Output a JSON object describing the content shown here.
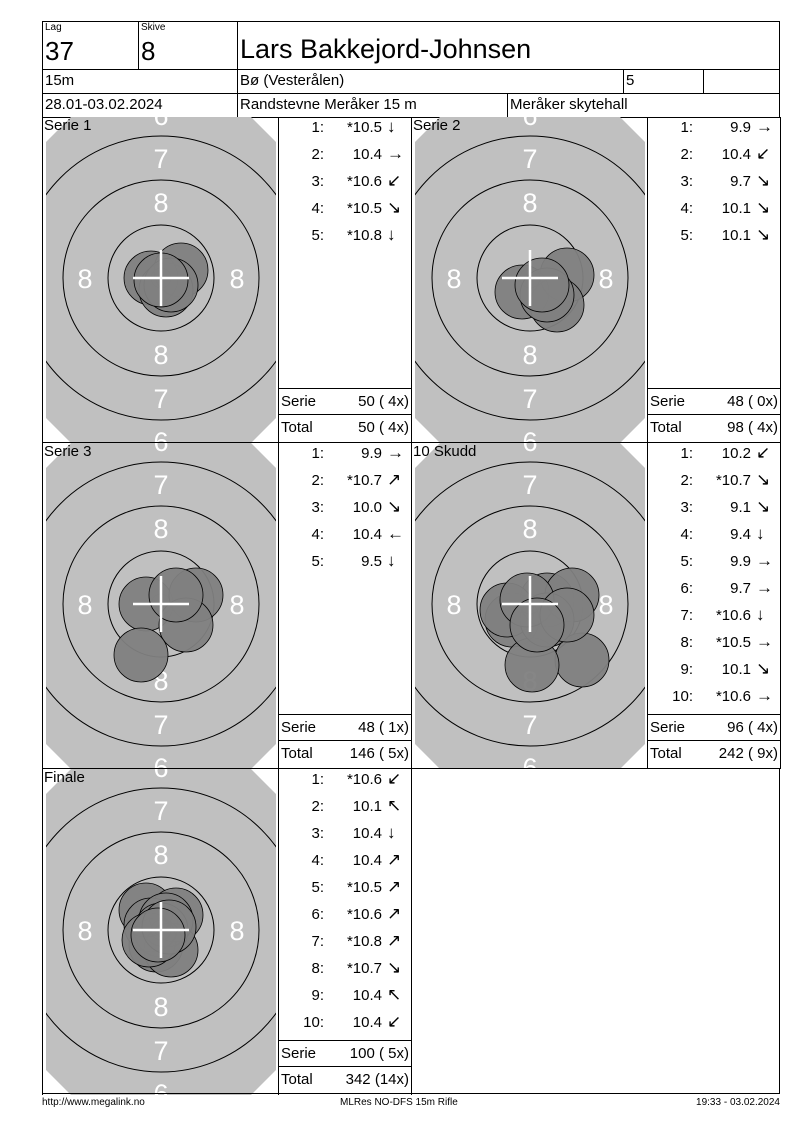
{
  "header": {
    "lag_label": "Lag",
    "lag": "37",
    "skive_label": "Skive",
    "skive": "8",
    "shooter": "Lars Bakkejord-Johnsen",
    "distance": "15m",
    "club": "Bø (Vesterålen)",
    "class": "5",
    "extra": "",
    "dates": "28.01-03.02.2024",
    "competition": "Randstevne Meråker 15 m",
    "venue": "Meråker skytehall"
  },
  "colors": {
    "target": "#c0c0c0",
    "shot": "#808080",
    "ring_text": "#ffffff"
  },
  "ring_labels": [
    "6",
    "7",
    "8",
    "8",
    "8",
    "8",
    "7",
    "6"
  ],
  "panels": [
    {
      "title": "Serie 1",
      "shots": [
        {
          "n": "1:",
          "v": "*10.5",
          "dir": "↓"
        },
        {
          "n": "2:",
          "v": "10.4",
          "dir": "→"
        },
        {
          "n": "3:",
          "v": "*10.6",
          "dir": "↙"
        },
        {
          "n": "4:",
          "v": "*10.5",
          "dir": "↘"
        },
        {
          "n": "5:",
          "v": "*10.8",
          "dir": "↓"
        }
      ],
      "serie_label": "Serie",
      "serie": "50 ( 4x)",
      "total_label": "Total",
      "total": "50 ( 4x)"
    },
    {
      "title": "Serie 2",
      "shots": [
        {
          "n": "1:",
          "v": "9.9",
          "dir": "→"
        },
        {
          "n": "2:",
          "v": "10.4",
          "dir": "↙"
        },
        {
          "n": "3:",
          "v": "9.7",
          "dir": "↘"
        },
        {
          "n": "4:",
          "v": "10.1",
          "dir": "↘"
        },
        {
          "n": "5:",
          "v": "10.1",
          "dir": "↘"
        }
      ],
      "serie_label": "Serie",
      "serie": "48 ( 0x)",
      "total_label": "Total",
      "total": "98 ( 4x)"
    },
    {
      "title": "Serie 3",
      "shots": [
        {
          "n": "1:",
          "v": "9.9",
          "dir": "→"
        },
        {
          "n": "2:",
          "v": "*10.7",
          "dir": "↗"
        },
        {
          "n": "3:",
          "v": "10.0",
          "dir": "↘"
        },
        {
          "n": "4:",
          "v": "10.4",
          "dir": "←"
        },
        {
          "n": "5:",
          "v": "9.5",
          "dir": "↓"
        }
      ],
      "serie_label": "Serie",
      "serie": "48 ( 1x)",
      "total_label": "Total",
      "total": "146 ( 5x)"
    },
    {
      "title": "10 Skudd",
      "shots": [
        {
          "n": "1:",
          "v": "10.2",
          "dir": "↙"
        },
        {
          "n": "2:",
          "v": "*10.7",
          "dir": "↘"
        },
        {
          "n": "3:",
          "v": "9.1",
          "dir": "↘"
        },
        {
          "n": "4:",
          "v": "9.4",
          "dir": "↓"
        },
        {
          "n": "5:",
          "v": "9.9",
          "dir": "→"
        },
        {
          "n": "6:",
          "v": "9.7",
          "dir": "→"
        },
        {
          "n": "7:",
          "v": "*10.6",
          "dir": "↓"
        },
        {
          "n": "8:",
          "v": "*10.5",
          "dir": "→"
        },
        {
          "n": "9:",
          "v": "10.1",
          "dir": "↘"
        },
        {
          "n": "10:",
          "v": "*10.6",
          "dir": "→"
        }
      ],
      "serie_label": "Serie",
      "serie": "96 ( 4x)",
      "total_label": "Total",
      "total": "242 ( 9x)"
    },
    {
      "title": "Finale",
      "shots": [
        {
          "n": "1:",
          "v": "*10.6",
          "dir": "↙"
        },
        {
          "n": "2:",
          "v": "10.1",
          "dir": "↖"
        },
        {
          "n": "3:",
          "v": "10.4",
          "dir": "↓"
        },
        {
          "n": "4:",
          "v": "10.4",
          "dir": "↗"
        },
        {
          "n": "5:",
          "v": "*10.5",
          "dir": "↗"
        },
        {
          "n": "6:",
          "v": "*10.6",
          "dir": "↗"
        },
        {
          "n": "7:",
          "v": "*10.8",
          "dir": "↗"
        },
        {
          "n": "8:",
          "v": "*10.7",
          "dir": "↘"
        },
        {
          "n": "9:",
          "v": "10.4",
          "dir": "↖"
        },
        {
          "n": "10:",
          "v": "10.4",
          "dir": "↙"
        }
      ],
      "serie_label": "Serie",
      "serie": "100 ( 5x)",
      "total_label": "Total",
      "total": "342 (14x)"
    }
  ],
  "footer": {
    "left": "http://www.megalink.no",
    "center": "MLRes NO-DFS 15m Rifle",
    "right": "19:33 - 03.02.2024"
  }
}
